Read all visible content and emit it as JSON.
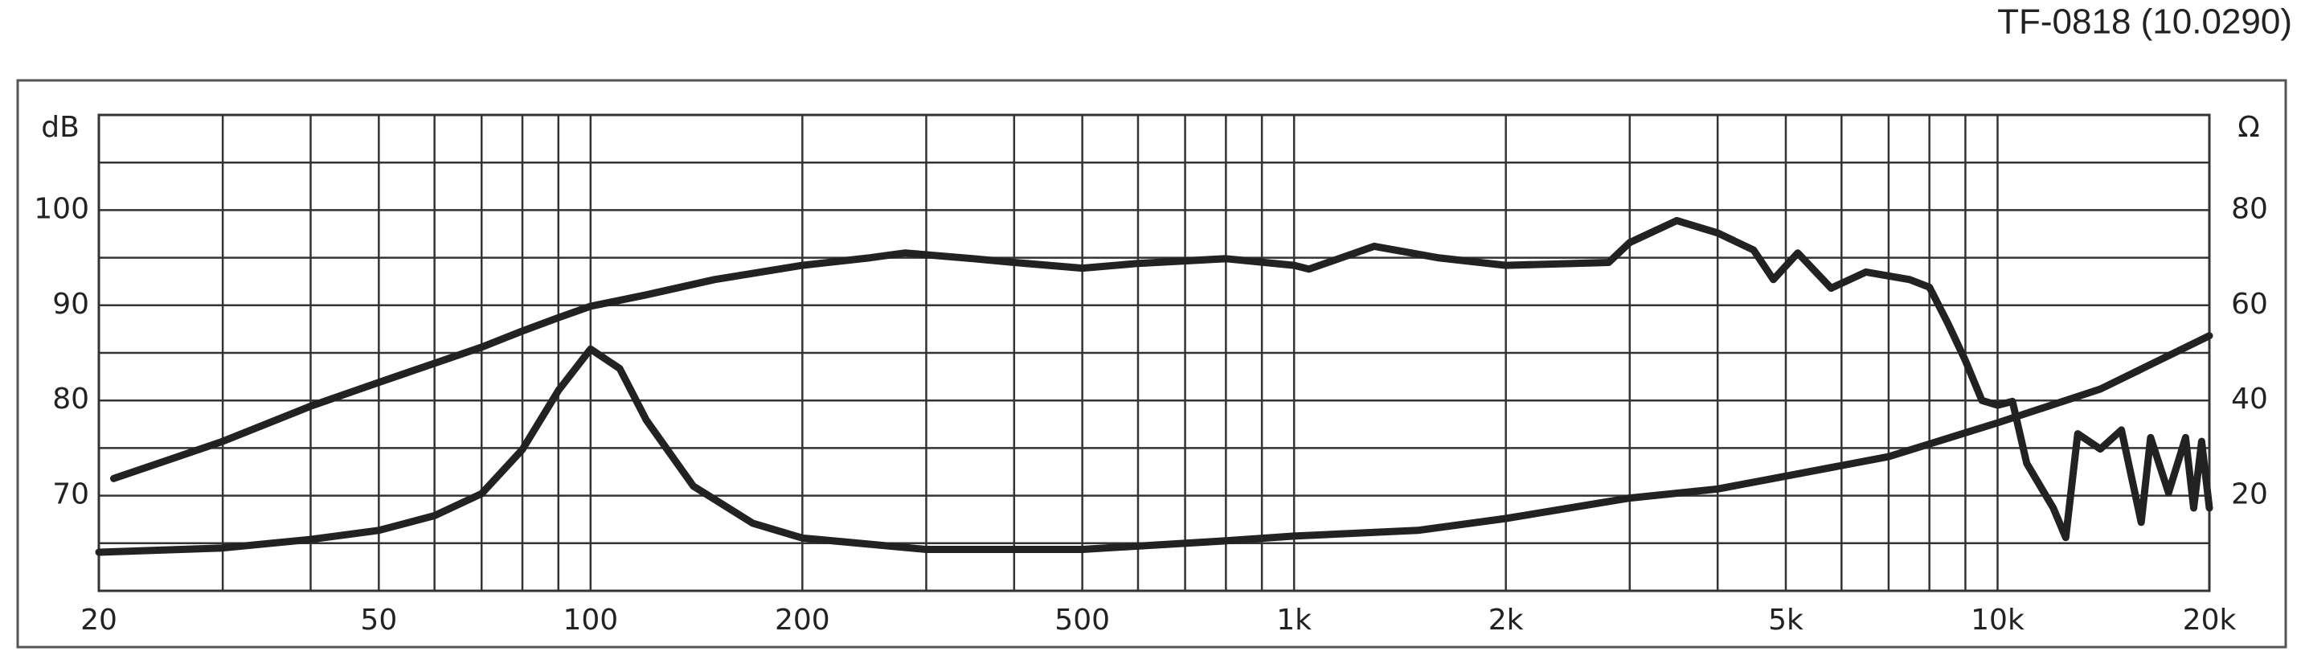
{
  "chart_data": {
    "type": "line",
    "title": "TF-0818 (10.0290)",
    "ylabel": "dB",
    "y2label": "Ω",
    "xscale": "log",
    "xlim": [
      20,
      20000
    ],
    "xticks": [
      20,
      50,
      100,
      200,
      500,
      {
        "value": 1000,
        "label": "1k"
      },
      {
        "value": 2000,
        "label": "2k"
      },
      {
        "value": 5000,
        "label": "5k"
      },
      {
        "value": 10000,
        "label": "10k"
      },
      {
        "value": 20000,
        "label": "20k"
      }
    ],
    "xminorticks": [
      30,
      40,
      60,
      70,
      80,
      90,
      300,
      400,
      600,
      700,
      800,
      900,
      3000,
      4000,
      6000,
      7000,
      8000,
      9000
    ],
    "ylim": [
      60,
      110
    ],
    "yticks": [
      70,
      80,
      90,
      100
    ],
    "yminorticks": [
      65,
      75,
      85,
      95,
      105
    ],
    "y2lim": [
      0,
      100
    ],
    "y2ticks": [
      20,
      40,
      60,
      80
    ],
    "grid": true,
    "series": [
      {
        "color": "#222222",
        "axis": "y",
        "x": [
          21,
          25,
          30,
          40,
          50,
          60,
          70,
          80,
          90,
          100,
          120,
          150,
          200,
          250,
          280,
          350,
          400,
          500,
          600,
          800,
          1000,
          1050,
          1300,
          1600,
          2000,
          2500,
          2800,
          3000,
          3500,
          4000,
          4500,
          4800,
          5200,
          5800,
          6500,
          7500,
          8000,
          8500,
          9000,
          9500,
          10000,
          10500,
          11000,
          12000,
          12500,
          13000,
          14000,
          15000,
          16000,
          16500,
          17500,
          18500,
          19000,
          19500,
          20000
        ],
        "values": [
          71.8,
          73.7,
          75.7,
          79.4,
          81.9,
          83.9,
          85.6,
          87.3,
          88.7,
          89.9,
          91.1,
          92.7,
          94.2,
          95.0,
          95.5,
          94.9,
          94.5,
          93.9,
          94.4,
          94.9,
          94.2,
          93.8,
          96.2,
          95.0,
          94.2,
          94.4,
          94.5,
          96.6,
          98.9,
          97.6,
          95.8,
          92.7,
          95.5,
          91.8,
          93.5,
          92.7,
          91.9,
          88.1,
          84.2,
          80.0,
          79.5,
          79.9,
          73.4,
          68.7,
          65.6,
          76.5,
          74.9,
          76.9,
          67.2,
          76.1,
          70.3,
          76.1,
          68.7,
          75.7,
          68.7
        ]
      },
      {
        "color": "#222222",
        "axis": "y2",
        "x": [
          20,
          30,
          40,
          50,
          60,
          70,
          80,
          90,
          100,
          110,
          120,
          140,
          170,
          200,
          300,
          500,
          800,
          1000,
          1500,
          2000,
          3000,
          4000,
          5000,
          7000,
          10000,
          14000,
          20000
        ],
        "values": [
          8.1,
          9.0,
          10.8,
          12.7,
          15.8,
          20.4,
          29.7,
          42.1,
          50.8,
          46.7,
          35.9,
          22.0,
          14.2,
          11.1,
          8.7,
          8.7,
          10.5,
          11.5,
          12.7,
          15.2,
          19.5,
          21.4,
          24.1,
          28.2,
          35.3,
          42.4,
          53.6
        ]
      }
    ]
  }
}
